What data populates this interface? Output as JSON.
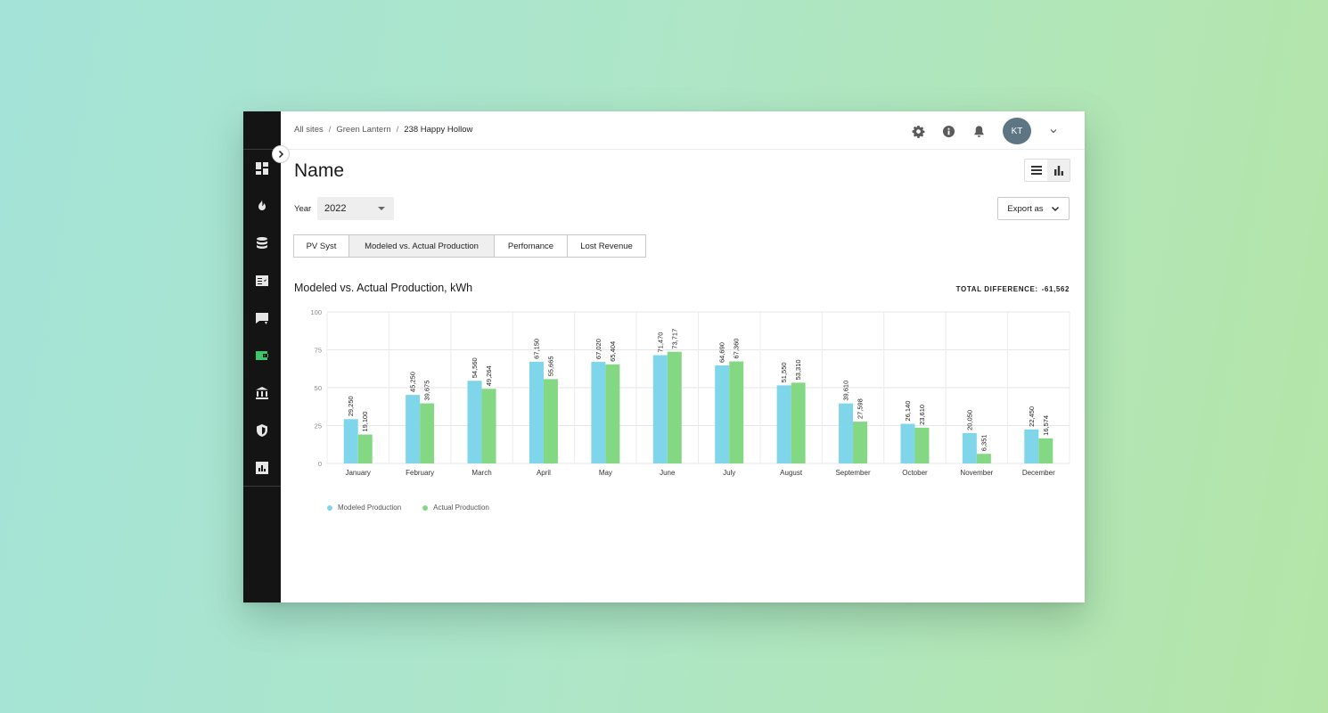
{
  "breadcrumb": {
    "items": [
      "All sites",
      "Green Lantern",
      "238 Happy Hollow"
    ],
    "separator": "/"
  },
  "user": {
    "initials": "KT"
  },
  "header": {
    "title": "Name"
  },
  "filters": {
    "year_label": "Year",
    "year_value": "2022",
    "export_label": "Export as"
  },
  "tabs": [
    {
      "label": "PV Syst",
      "active": false
    },
    {
      "label": "Modeled vs. Actual Production",
      "active": true
    },
    {
      "label": "Perfomance",
      "active": false
    },
    {
      "label": "Lost Revenue",
      "active": false
    }
  ],
  "summary": {
    "total_label": "TOTAL DIFFERENCE:",
    "total_value": "-61,562"
  },
  "colors": {
    "modeled": "#7fd6ea",
    "actual": "#85d883",
    "sidebar_active": "#3ec46d"
  },
  "sidebar_icons": [
    "dashboard-icon",
    "fire-icon",
    "database-icon",
    "checklist-icon",
    "chat-alert-icon",
    "wallet-icon",
    "bank-icon",
    "shield-icon",
    "report-icon"
  ],
  "chart_data": {
    "type": "bar",
    "title": "Modeled vs. Actual Production, kWh",
    "categories": [
      "January",
      "February",
      "March",
      "April",
      "May",
      "June",
      "July",
      "August",
      "September",
      "October",
      "November",
      "December"
    ],
    "series": [
      {
        "name": "Modeled Production",
        "values": [
          29250,
          45250,
          54560,
          67150,
          67020,
          71470,
          64690,
          51550,
          39610,
          26140,
          20050,
          22450
        ],
        "labels": [
          "29,250",
          "45,250",
          "54,560",
          "67,150",
          "67,020",
          "71,470",
          "64,690",
          "51,550",
          "39,610",
          "26,140",
          "20,050",
          "22,450"
        ]
      },
      {
        "name": "Actual Production",
        "values": [
          19100,
          39675,
          49264,
          55665,
          65404,
          73717,
          67360,
          53310,
          27598,
          23610,
          6351,
          16574
        ],
        "labels": [
          "19,100",
          "39,675",
          "49,264",
          "55,665",
          "65,404",
          "73,717",
          "67,360",
          "53,310",
          "27,598",
          "23,610",
          "6,351",
          "16,574"
        ]
      }
    ],
    "y_ticks": [
      0,
      25,
      50,
      75,
      100
    ],
    "y_tick_labels": [
      "0",
      "25",
      "50",
      "75",
      "100"
    ],
    "ylim": [
      0,
      100000
    ],
    "grid": true,
    "legend_position": "bottom-left"
  }
}
